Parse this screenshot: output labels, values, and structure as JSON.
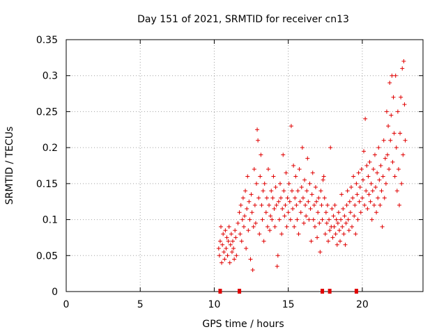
{
  "chart_data": {
    "type": "scatter",
    "title": "Day 151 of 2021, SRMTID for receiver cn13",
    "xlabel": "GPS time / hours",
    "ylabel": "SRMTID / TECUs",
    "xlim": [
      0,
      24.1
    ],
    "ylim": [
      0,
      0.35
    ],
    "xticks": [
      0,
      5,
      10,
      15,
      20
    ],
    "xtick_labels": [
      "0",
      "5",
      "10",
      "15",
      "20"
    ],
    "yticks": [
      0,
      0.05,
      0.1,
      0.15,
      0.2,
      0.25,
      0.3,
      0.35
    ],
    "ytick_labels": [
      "0",
      "0.05",
      "0.1",
      "0.15",
      "0.2",
      "0.25",
      "0.3",
      "0.35"
    ],
    "grid": true,
    "marker": "plus",
    "color": "#e00000",
    "series": [
      {
        "name": "SRMTID",
        "points": [
          [
            10.3,
            0.06
          ],
          [
            10.35,
            0.05
          ],
          [
            10.4,
            0.07
          ],
          [
            10.45,
            0.09
          ],
          [
            10.5,
            0.04
          ],
          [
            10.55,
            0.065
          ],
          [
            10.6,
            0.08
          ],
          [
            10.65,
            0.055
          ],
          [
            10.7,
            0.045
          ],
          [
            10.75,
            0.085
          ],
          [
            10.8,
            0.06
          ],
          [
            10.85,
            0.075
          ],
          [
            10.9,
            0.05
          ],
          [
            10.95,
            0.07
          ],
          [
            11.0,
            0.09
          ],
          [
            11.05,
            0.04
          ],
          [
            11.1,
            0.065
          ],
          [
            11.15,
            0.08
          ],
          [
            11.2,
            0.055
          ],
          [
            11.25,
            0.07
          ],
          [
            11.3,
            0.06
          ],
          [
            11.35,
            0.045
          ],
          [
            11.4,
            0.085
          ],
          [
            11.45,
            0.075
          ],
          [
            11.5,
            0.05
          ],
          [
            11.6,
            0.095
          ],
          [
            11.7,
            0.11
          ],
          [
            11.75,
            0.08
          ],
          [
            11.8,
            0.12
          ],
          [
            11.85,
            0.07
          ],
          [
            11.9,
            0.1
          ],
          [
            11.95,
            0.13
          ],
          [
            12.0,
            0.09
          ],
          [
            12.05,
            0.105
          ],
          [
            12.1,
            0.14
          ],
          [
            12.15,
            0.06
          ],
          [
            12.2,
            0.115
          ],
          [
            12.25,
            0.16
          ],
          [
            12.3,
            0.085
          ],
          [
            12.35,
            0.125
          ],
          [
            12.4,
            0.1
          ],
          [
            12.45,
            0.045
          ],
          [
            12.5,
            0.135
          ],
          [
            12.55,
            0.11
          ],
          [
            12.6,
            0.03
          ],
          [
            12.65,
            0.09
          ],
          [
            12.7,
            0.17
          ],
          [
            12.75,
            0.12
          ],
          [
            12.8,
            0.095
          ],
          [
            12.85,
            0.15
          ],
          [
            12.9,
            0.225
          ],
          [
            12.95,
            0.21
          ],
          [
            13.0,
            0.13
          ],
          [
            13.05,
            0.08
          ],
          [
            13.1,
            0.16
          ],
          [
            13.15,
            0.19
          ],
          [
            13.2,
            0.12
          ],
          [
            13.25,
            0.1
          ],
          [
            13.3,
            0.14
          ],
          [
            13.35,
            0.07
          ],
          [
            13.4,
            0.15
          ],
          [
            13.5,
            0.11
          ],
          [
            13.55,
            0.13
          ],
          [
            13.6,
            0.09
          ],
          [
            13.65,
            0.17
          ],
          [
            13.7,
            0.12
          ],
          [
            13.75,
            0.085
          ],
          [
            13.8,
            0.105
          ],
          [
            13.85,
            0.14
          ],
          [
            13.9,
            0.1
          ],
          [
            13.95,
            0.13
          ],
          [
            14.0,
            0.16
          ],
          [
            14.05,
            0.115
          ],
          [
            14.1,
            0.09
          ],
          [
            14.15,
            0.145
          ],
          [
            14.2,
            0.12
          ],
          [
            14.25,
            0.035
          ],
          [
            14.3,
            0.05
          ],
          [
            14.35,
            0.125
          ],
          [
            14.4,
            0.1
          ],
          [
            14.45,
            0.15
          ],
          [
            14.5,
            0.13
          ],
          [
            14.55,
            0.08
          ],
          [
            14.6,
            0.115
          ],
          [
            14.65,
            0.19
          ],
          [
            14.7,
            0.14
          ],
          [
            14.75,
            0.105
          ],
          [
            14.8,
            0.12
          ],
          [
            14.85,
            0.165
          ],
          [
            14.9,
            0.09
          ],
          [
            14.95,
            0.13
          ],
          [
            15.0,
            0.11
          ],
          [
            15.05,
            0.15
          ],
          [
            15.1,
            0.125
          ],
          [
            15.15,
            0.1
          ],
          [
            15.2,
            0.23
          ],
          [
            15.25,
            0.14
          ],
          [
            15.3,
            0.115
          ],
          [
            15.35,
            0.175
          ],
          [
            15.4,
            0.09
          ],
          [
            15.45,
            0.13
          ],
          [
            15.5,
            0.16
          ],
          [
            15.55,
            0.12
          ],
          [
            15.6,
            0.1
          ],
          [
            15.65,
            0.14
          ],
          [
            15.7,
            0.08
          ],
          [
            15.75,
            0.17
          ],
          [
            15.8,
            0.125
          ],
          [
            15.85,
            0.11
          ],
          [
            15.9,
            0.145
          ],
          [
            15.95,
            0.2
          ],
          [
            16.0,
            0.13
          ],
          [
            16.05,
            0.095
          ],
          [
            16.1,
            0.155
          ],
          [
            16.15,
            0.12
          ],
          [
            16.2,
            0.105
          ],
          [
            16.25,
            0.14
          ],
          [
            16.3,
            0.185
          ],
          [
            16.35,
            0.125
          ],
          [
            16.4,
            0.1
          ],
          [
            16.45,
            0.15
          ],
          [
            16.5,
            0.115
          ],
          [
            16.55,
            0.07
          ],
          [
            16.6,
            0.135
          ],
          [
            16.65,
            0.165
          ],
          [
            16.7,
            0.1
          ],
          [
            16.75,
            0.12
          ],
          [
            16.8,
            0.09
          ],
          [
            16.85,
            0.145
          ],
          [
            16.9,
            0.125
          ],
          [
            16.95,
            0.075
          ],
          [
            17.0,
            0.11
          ],
          [
            17.05,
            0.13
          ],
          [
            17.1,
            0.095
          ],
          [
            17.15,
            0.055
          ],
          [
            17.2,
            0.14
          ],
          [
            17.25,
            0.12
          ],
          [
            17.3,
            0.1
          ],
          [
            17.35,
            0.155
          ],
          [
            17.4,
            0.16
          ],
          [
            17.45,
            0.13
          ],
          [
            17.5,
            0.08
          ],
          [
            17.55,
            0.11
          ],
          [
            17.6,
            0.095
          ],
          [
            17.65,
            0.12
          ],
          [
            17.7,
            0.07
          ],
          [
            17.75,
            0.1
          ],
          [
            17.8,
            0.085
          ],
          [
            17.85,
            0.2
          ],
          [
            17.9,
            0.09
          ],
          [
            17.95,
            0.115
          ],
          [
            18.0,
            0.075
          ],
          [
            18.05,
            0.105
          ],
          [
            18.1,
            0.09
          ],
          [
            18.15,
            0.12
          ],
          [
            18.2,
            0.08
          ],
          [
            18.25,
            0.1
          ],
          [
            18.3,
            0.065
          ],
          [
            18.35,
            0.095
          ],
          [
            18.4,
            0.11
          ],
          [
            18.45,
            0.085
          ],
          [
            18.5,
            0.07
          ],
          [
            18.55,
            0.1
          ],
          [
            18.6,
            0.135
          ],
          [
            18.65,
            0.09
          ],
          [
            18.7,
            0.115
          ],
          [
            18.75,
            0.08
          ],
          [
            18.8,
            0.105
          ],
          [
            18.85,
            0.065
          ],
          [
            18.9,
            0.095
          ],
          [
            18.95,
            0.12
          ],
          [
            19.0,
            0.14
          ],
          [
            19.05,
            0.1
          ],
          [
            19.1,
            0.085
          ],
          [
            19.15,
            0.125
          ],
          [
            19.2,
            0.11
          ],
          [
            19.25,
            0.145
          ],
          [
            19.3,
            0.09
          ],
          [
            19.35,
            0.13
          ],
          [
            19.4,
            0.16
          ],
          [
            19.45,
            0.105
          ],
          [
            19.5,
            0.12
          ],
          [
            19.55,
            0.08
          ],
          [
            19.6,
            0.15
          ],
          [
            19.65,
            0.135
          ],
          [
            19.7,
            0.1
          ],
          [
            19.75,
            0.165
          ],
          [
            19.8,
            0.125
          ],
          [
            19.85,
            0.145
          ],
          [
            19.9,
            0.11
          ],
          [
            19.95,
            0.17
          ],
          [
            20.0,
            0.13
          ],
          [
            20.05,
            0.155
          ],
          [
            20.1,
            0.195
          ],
          [
            20.15,
            0.12
          ],
          [
            20.2,
            0.24
          ],
          [
            20.25,
            0.14
          ],
          [
            20.3,
            0.175
          ],
          [
            20.35,
            0.115
          ],
          [
            20.4,
            0.16
          ],
          [
            20.45,
            0.135
          ],
          [
            20.5,
            0.18
          ],
          [
            20.55,
            0.125
          ],
          [
            20.6,
            0.15
          ],
          [
            20.65,
            0.1
          ],
          [
            20.7,
            0.14
          ],
          [
            20.75,
            0.17
          ],
          [
            20.8,
            0.12
          ],
          [
            20.85,
            0.19
          ],
          [
            20.9,
            0.145
          ],
          [
            20.95,
            0.11
          ],
          [
            21.0,
            0.165
          ],
          [
            21.05,
            0.13
          ],
          [
            21.1,
            0.2
          ],
          [
            21.15,
            0.155
          ],
          [
            21.2,
            0.12
          ],
          [
            21.25,
            0.175
          ],
          [
            21.3,
            0.14
          ],
          [
            21.35,
            0.09
          ],
          [
            21.4,
            0.16
          ],
          [
            21.45,
            0.21
          ],
          [
            21.5,
            0.13
          ],
          [
            21.55,
            0.185
          ],
          [
            21.6,
            0.15
          ],
          [
            21.65,
            0.25
          ],
          [
            21.7,
            0.19
          ],
          [
            21.75,
            0.23
          ],
          [
            21.8,
            0.17
          ],
          [
            21.85,
            0.29
          ],
          [
            21.9,
            0.21
          ],
          [
            21.95,
            0.245
          ],
          [
            22.0,
            0.3
          ],
          [
            22.05,
            0.18
          ],
          [
            22.1,
            0.27
          ],
          [
            22.15,
            0.22
          ],
          [
            22.2,
            0.16
          ],
          [
            22.25,
            0.3
          ],
          [
            22.3,
            0.2
          ],
          [
            22.35,
            0.14
          ],
          [
            22.4,
            0.25
          ],
          [
            22.45,
            0.17
          ],
          [
            22.5,
            0.12
          ],
          [
            22.55,
            0.22
          ],
          [
            22.6,
            0.27
          ],
          [
            22.65,
            0.15
          ],
          [
            22.7,
            0.31
          ],
          [
            22.75,
            0.19
          ],
          [
            22.8,
            0.32
          ],
          [
            22.85,
            0.26
          ],
          [
            22.9,
            0.21
          ]
        ]
      }
    ],
    "flag_markers_at_zero": [
      10.4,
      11.7,
      17.3,
      17.8,
      19.6
    ]
  }
}
